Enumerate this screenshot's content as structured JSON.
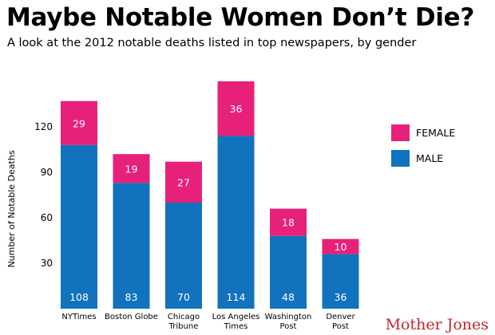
{
  "header": {
    "title": "Maybe Notable Women Don’t Die?",
    "subtitle": "A look at the 2012 notable deaths listed in top newspapers, by gender"
  },
  "footer": {
    "credit": "Mother Jones"
  },
  "colors": {
    "female": "#e7217a",
    "male": "#1172bd"
  },
  "chart_data": {
    "type": "bar",
    "stacked": true,
    "categories": [
      "NYTimes",
      "Boston Globe",
      "Chicago\nTribune",
      "Los Angeles\nTimes",
      "Washington\nPost",
      "Denver\nPost"
    ],
    "series": [
      {
        "name": "MALE",
        "values": [
          108,
          83,
          70,
          114,
          48,
          36
        ]
      },
      {
        "name": "FEMALE",
        "values": [
          29,
          19,
          27,
          36,
          18,
          10
        ]
      }
    ],
    "title": "Maybe Notable Women Don’t Die?",
    "xlabel": "",
    "ylabel": "Number of Notable Deaths",
    "ylim": [
      0,
      150
    ],
    "yticks": [
      30,
      60,
      90,
      120
    ],
    "grid": false,
    "legend": "right",
    "data_labels": true
  }
}
